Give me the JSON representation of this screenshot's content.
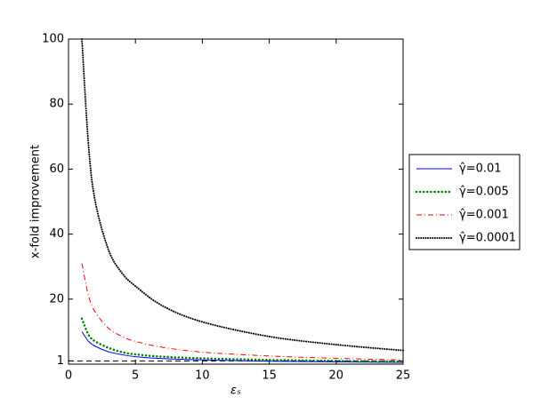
{
  "chart_data": {
    "type": "line",
    "xlabel": "εₛ",
    "ylabel": "x-fold improvement",
    "x": [
      1,
      1.5,
      2,
      3,
      4,
      5,
      7,
      10,
      15,
      20,
      25
    ],
    "series": [
      {
        "name": "γ̂=0.01",
        "color": "#0000ff",
        "style": "solid",
        "values": [
          10,
          7,
          5.5,
          3.8,
          2.9,
          2.3,
          1.7,
          1.3,
          0.9,
          0.7,
          0.5
        ]
      },
      {
        "name": "γ̂=0.005",
        "color": "#008000",
        "style": "dotted",
        "values": [
          14,
          9,
          7,
          5,
          3.7,
          3,
          2.3,
          1.8,
          1.3,
          1,
          0.8
        ]
      },
      {
        "name": "γ̂=0.001",
        "color": "#ff0000",
        "style": "dashdot",
        "values": [
          31,
          21,
          16,
          11,
          8.5,
          7,
          5.2,
          3.7,
          2.5,
          1.8,
          1.3
        ]
      },
      {
        "name": "γ̂=0.0001",
        "color": "#000000",
        "style": "finedot",
        "values": [
          100,
          67,
          50,
          35,
          28,
          24,
          18,
          13,
          8.5,
          6,
          4.2
        ]
      }
    ],
    "hline": 1,
    "xlim": [
      0,
      25
    ],
    "xticks": [
      0,
      5,
      10,
      15,
      20,
      25
    ],
    "ylim": [
      0,
      100
    ],
    "yticks": [
      1,
      20,
      40,
      60,
      80,
      100
    ],
    "legend": "outside-right"
  }
}
